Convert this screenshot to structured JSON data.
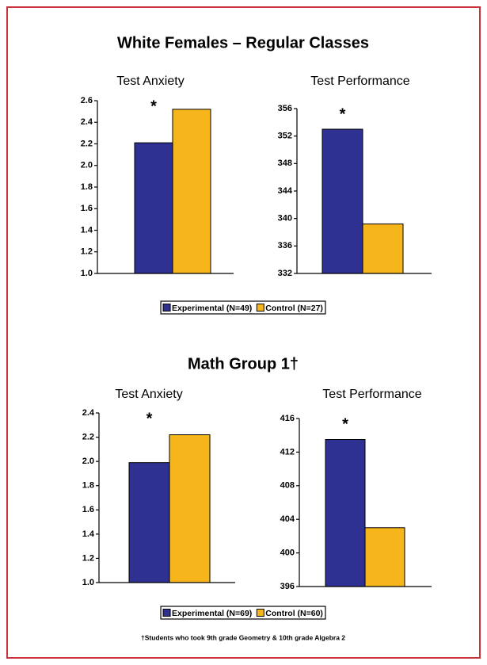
{
  "sections": [
    {
      "title": "White Females – Regular Classes",
      "legend": [
        "Experimental (N=49)",
        "Control (N=27)"
      ]
    },
    {
      "title": "Math Group 1†",
      "legend": [
        "Experimental (N=69)",
        "Control (N=60)"
      ]
    }
  ],
  "footnote": "†Students who took 9th grade Geometry & 10th grade Algebra 2",
  "chart_data": [
    {
      "type": "bar",
      "title": "Test Anxiety",
      "annotation": "*",
      "series": [
        {
          "color": "#2e3192",
          "values": [
            2.21
          ]
        },
        {
          "color": "#f5b51b",
          "values": [
            2.52
          ]
        }
      ],
      "ylim": [
        1.0,
        2.6
      ],
      "yticks": [
        {
          "value": 1.0,
          "label": "1.0"
        },
        1.2,
        1.4,
        1.6,
        1.8,
        {
          "value": 2.0,
          "label": "2.0"
        },
        2.2,
        2.4,
        2.6
      ]
    },
    {
      "type": "bar",
      "title": "Test Performance",
      "annotation": "*",
      "series": [
        {
          "color": "#2e3192",
          "values": [
            353
          ]
        },
        {
          "color": "#f5b51b",
          "values": [
            339.2
          ]
        }
      ],
      "ylim": [
        332,
        356
      ],
      "yticks": [
        332,
        336,
        340,
        344,
        348,
        352,
        356
      ]
    },
    {
      "type": "bar",
      "title": "Test Anxiety",
      "annotation": "*",
      "series": [
        {
          "color": "#2e3192",
          "values": [
            1.99
          ]
        },
        {
          "color": "#f5b51b",
          "values": [
            2.22
          ]
        }
      ],
      "ylim": [
        1.0,
        2.4
      ],
      "yticks": [
        {
          "value": 1.0,
          "label": "1.0"
        },
        1.2,
        1.4,
        1.6,
        1.8,
        {
          "value": 2.0,
          "label": "2.0"
        },
        2.2,
        2.4
      ]
    },
    {
      "type": "bar",
      "title": "Test Performance",
      "annotation": "*",
      "series": [
        {
          "color": "#2e3192",
          "values": [
            413.5
          ]
        },
        {
          "color": "#f5b51b",
          "values": [
            403
          ]
        }
      ],
      "ylim": [
        396,
        416
      ],
      "yticks": [
        396,
        400,
        404,
        408,
        412,
        416
      ]
    }
  ]
}
